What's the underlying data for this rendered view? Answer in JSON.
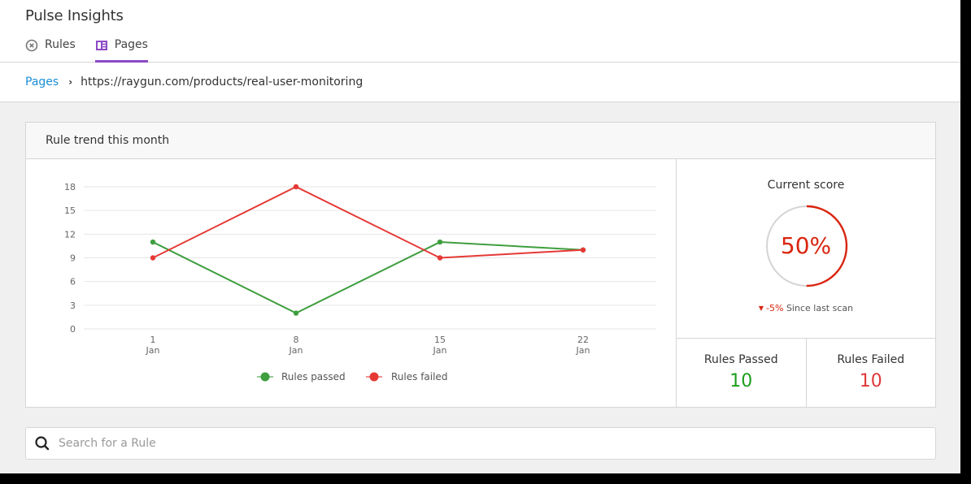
{
  "app": {
    "title": "Pulse Insights"
  },
  "tabs": [
    {
      "label": "Rules",
      "icon": "x-circle-icon",
      "active": false
    },
    {
      "label": "Pages",
      "icon": "page-layout-icon",
      "active": true
    }
  ],
  "breadcrumb": {
    "link": "Pages",
    "separator": "›",
    "current": "https://raygun.com/products/real-user-monitoring"
  },
  "trend_card": {
    "title": "Rule trend this month"
  },
  "score": {
    "title": "Current score",
    "value": "50%",
    "percent": 50,
    "delta_arrow": "▼",
    "delta_value": "-5%",
    "delta_label": "Since last scan"
  },
  "stats": {
    "passed_label": "Rules Passed",
    "passed_value": "10",
    "failed_label": "Rules Failed",
    "failed_value": "10"
  },
  "search": {
    "placeholder": "Search for a Rule",
    "value": ""
  },
  "colors": {
    "accent": "#8d4ac7",
    "link": "#1a8fd6",
    "passed": "#3f9e3f",
    "failed": "#e53935",
    "score": "#d9250f"
  },
  "chart_data": {
    "type": "line",
    "title": "Rule trend this month",
    "categories": [
      "1 Jan",
      "8 Jan",
      "15 Jan",
      "22 Jan"
    ],
    "x_ticks": [
      {
        "day": "1",
        "month": "Jan"
      },
      {
        "day": "8",
        "month": "Jan"
      },
      {
        "day": "15",
        "month": "Jan"
      },
      {
        "day": "22",
        "month": "Jan"
      }
    ],
    "series": [
      {
        "name": "Rules passed",
        "color": "#3f9e3f",
        "values": [
          11,
          2,
          11,
          10
        ]
      },
      {
        "name": "Rules failed",
        "color": "#e53935",
        "values": [
          9,
          18,
          9,
          10
        ]
      }
    ],
    "y_ticks": [
      0,
      3,
      6,
      9,
      12,
      15,
      18
    ],
    "ylim": [
      0,
      18
    ],
    "xlabel": "",
    "ylabel": "",
    "grid": true,
    "legend_position": "bottom"
  }
}
